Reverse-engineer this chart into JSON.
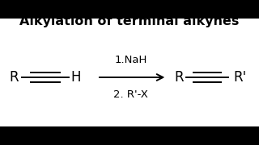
{
  "title": "Alkylation of terminal alkynes",
  "title_fontsize": 11.5,
  "title_fontweight": "bold",
  "background_color": "#ffffff",
  "bar_color": "#000000",
  "text_color": "#000000",
  "reagent_line1": "1.NaH",
  "reagent_line2": "2. R'-X",
  "reactant_R": "R",
  "reactant_H": "H",
  "product_R": "R",
  "product_Rprime": "R'",
  "fig_width": 3.2,
  "fig_height": 1.8,
  "dpi": 100,
  "black_bar_height": 0.13
}
